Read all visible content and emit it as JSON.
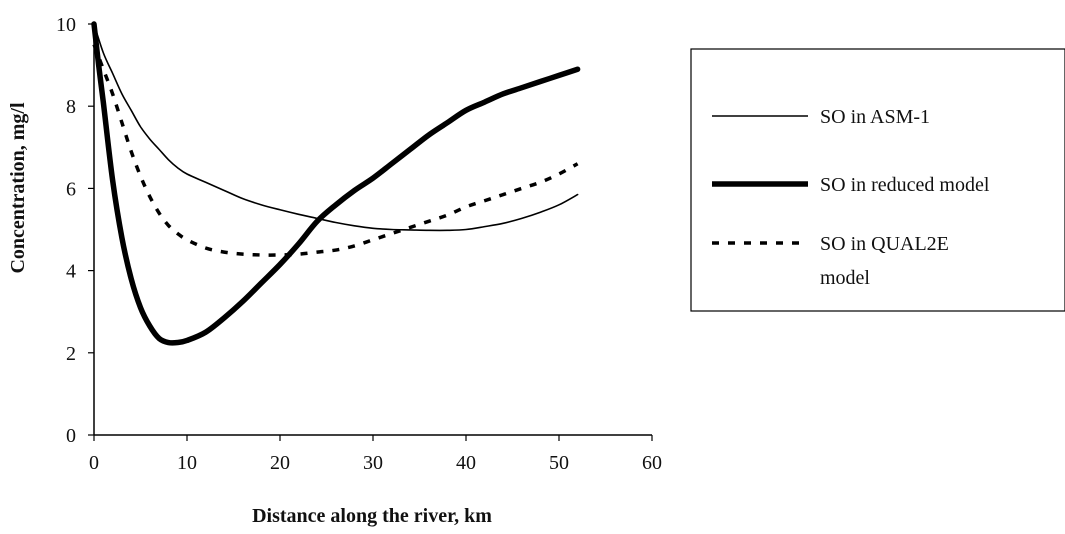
{
  "chart_data": {
    "type": "line",
    "title": "",
    "xlabel": "Distance along the river, km",
    "ylabel": "Concentration, mg/l",
    "xlim": [
      0,
      60
    ],
    "ylim": [
      0,
      10
    ],
    "xticks": [
      0,
      10,
      20,
      30,
      40,
      50,
      60
    ],
    "yticks": [
      0,
      2,
      4,
      6,
      8,
      10
    ],
    "grid": false,
    "legend_position": "right",
    "series": [
      {
        "name": "SO in ASM-1",
        "style": "thin-solid",
        "color": "#000000",
        "x": [
          0,
          1,
          2,
          3,
          4,
          5,
          6,
          7,
          8,
          9,
          10,
          12,
          14,
          16,
          18,
          20,
          22,
          24,
          26,
          28,
          30,
          32,
          34,
          36,
          38,
          40,
          42,
          44,
          46,
          48,
          50,
          52
        ],
        "y": [
          10.0,
          9.3,
          8.8,
          8.3,
          7.9,
          7.5,
          7.2,
          6.95,
          6.7,
          6.5,
          6.35,
          6.15,
          5.95,
          5.75,
          5.6,
          5.48,
          5.37,
          5.27,
          5.17,
          5.09,
          5.03,
          5.0,
          4.99,
          4.98,
          4.98,
          5.0,
          5.07,
          5.15,
          5.27,
          5.42,
          5.6,
          5.85
        ]
      },
      {
        "name": "SO in reduced model",
        "style": "thick-solid",
        "color": "#000000",
        "x": [
          0,
          0.5,
          1,
          2,
          3,
          4,
          5,
          6,
          7,
          8,
          9,
          10,
          12,
          14,
          16,
          18,
          20,
          22,
          24,
          26,
          28,
          30,
          32,
          34,
          36,
          38,
          40,
          42,
          44,
          46,
          48,
          50,
          52
        ],
        "y": [
          10.0,
          9.0,
          8.1,
          6.2,
          4.8,
          3.8,
          3.1,
          2.65,
          2.35,
          2.25,
          2.25,
          2.3,
          2.5,
          2.85,
          3.25,
          3.7,
          4.15,
          4.65,
          5.2,
          5.6,
          5.95,
          6.25,
          6.6,
          6.95,
          7.3,
          7.6,
          7.9,
          8.1,
          8.3,
          8.45,
          8.6,
          8.75,
          8.9
        ]
      },
      {
        "name": "SO in QUAL2E model",
        "style": "dashed",
        "color": "#000000",
        "x": [
          0,
          1,
          2,
          3,
          4,
          5,
          6,
          7,
          8,
          9,
          10,
          12,
          14,
          16,
          18,
          20,
          22,
          24,
          26,
          28,
          30,
          32,
          34,
          36,
          38,
          40,
          42,
          44,
          46,
          48,
          50,
          52
        ],
        "y": [
          9.5,
          8.9,
          8.3,
          7.6,
          6.9,
          6.3,
          5.8,
          5.4,
          5.1,
          4.9,
          4.75,
          4.55,
          4.45,
          4.4,
          4.38,
          4.38,
          4.4,
          4.45,
          4.5,
          4.6,
          4.75,
          4.9,
          5.05,
          5.2,
          5.35,
          5.55,
          5.7,
          5.85,
          6.0,
          6.15,
          6.35,
          6.6
        ]
      }
    ]
  }
}
